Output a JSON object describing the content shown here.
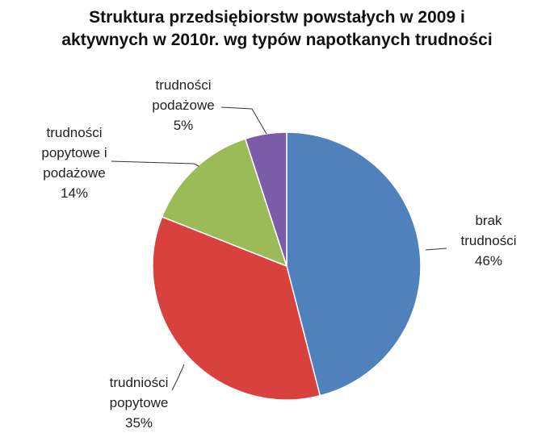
{
  "chart_data": {
    "type": "pie",
    "title": "Struktura przedsiębiorstw powstałych w 2009 i aktywnych w 2010r. wg typów napotkanych trudności",
    "categories": [
      "brak trudności",
      "trudniości popytowe",
      "trudności popytowe i podażowe",
      "trudności podażowe"
    ],
    "values": [
      46,
      35,
      14,
      5
    ],
    "value_labels": [
      "46%",
      "35%",
      "14%",
      "5%"
    ],
    "colors": [
      "#4f81bd",
      "#d9413e",
      "#9bbb59",
      "#7a5ca8"
    ]
  }
}
